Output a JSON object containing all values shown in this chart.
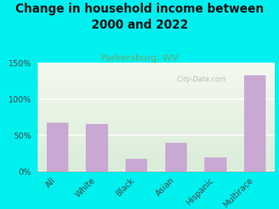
{
  "title": "Change in household income between\n2000 and 2022",
  "subtitle": "Parkersburg, WV",
  "categories": [
    "All",
    "White",
    "Black",
    "Asian",
    "Hispanic",
    "Multirace"
  ],
  "values": [
    67,
    65,
    17,
    39,
    19,
    133
  ],
  "bar_color": "#c9a8d4",
  "background_outer": "#00f0f0",
  "background_plot_top": "#d9edd9",
  "background_plot_bottom": "#f5f8ee",
  "title_color": "#111111",
  "subtitle_color": "#6aaa6a",
  "watermark": " City-Data.com",
  "watermark_icon": "⌖",
  "ylim": [
    0,
    150
  ],
  "yticks": [
    0,
    50,
    100,
    150
  ],
  "title_fontsize": 12,
  "subtitle_fontsize": 9.5,
  "tick_label_fontsize": 8.5,
  "bar_width": 0.55
}
